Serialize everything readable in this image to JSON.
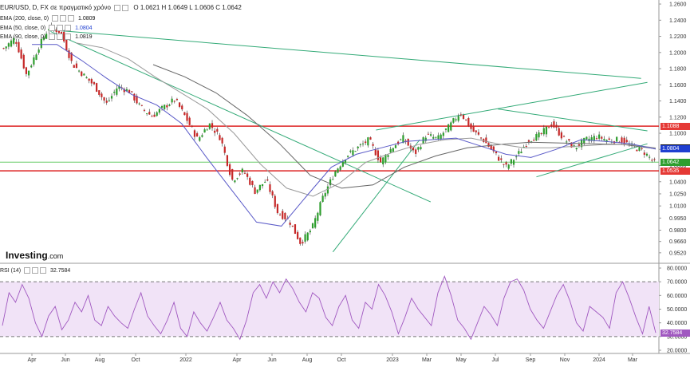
{
  "header": {
    "symbol": "EUR/USD, D, FX σε πραγματικό χρόνο",
    "ohlc": "O 1.0621  H 1.0649  L 1.0606  C 1.0642",
    "ema200": "EMA (200, close, 0)",
    "ema200_value": "1.0809",
    "ema50": "EMA (50, close, 0)",
    "ema50_value": "1.0804",
    "ema90": "EMA (90, close, 0)",
    "ema90_value": "1.0819",
    "rsi": "RSI (14)",
    "rsi_value": "32.7584"
  },
  "logo": {
    "brand": "Investing",
    "domain": ".com"
  },
  "colors": {
    "up": "#2e9e2e",
    "down": "#c62828",
    "ema200": "#666666",
    "ema50": "#5a5ac8",
    "ema90": "#9a9a9a",
    "trend": "#33aa77",
    "resistance": "#dd2222",
    "rsi": "#a058c0",
    "rsi_fill": "#f1e3f7",
    "badge_red": "#e53935",
    "badge_green": "#2e9e2e",
    "badge_blue": "#1f3fd1",
    "badge_black": "#111111",
    "badge_gray": "#777777"
  },
  "chart_data": [
    {
      "type": "candlestick",
      "title": "EUR/USD, D, FX σε πραγματικό χρόνο",
      "x_ticks": [
        "Apr",
        "Jun",
        "Aug",
        "Oct",
        "2022",
        "Apr",
        "Jun",
        "Aug",
        "Oct",
        "2023",
        "Mar",
        "May",
        "Jul",
        "Sep",
        "Nov",
        "2024",
        "Mar"
      ],
      "y_ticks": [
        "1.2600",
        "1.2400",
        "1.2200",
        "1.2000",
        "1.1800",
        "1.1600",
        "1.1400",
        "1.1200",
        "1.1000",
        "1.0800",
        "1.0600",
        "1.0400",
        "1.0250",
        "1.0100",
        "0.9950",
        "0.9800",
        "0.9660",
        "0.9520"
      ],
      "ylim": [
        0.94,
        1.265
      ],
      "price_path": [
        1.205,
        1.218,
        1.172,
        1.205,
        1.232,
        1.225,
        1.186,
        1.172,
        1.158,
        1.136,
        1.158,
        1.152,
        1.132,
        1.121,
        1.132,
        1.142,
        1.118,
        1.092,
        1.112,
        1.094,
        1.042,
        1.054,
        1.028,
        1.042,
        1.002,
        0.992,
        0.964,
        0.982,
        1.022,
        1.052,
        1.072,
        1.082,
        1.092,
        1.064,
        1.082,
        1.094,
        1.074,
        1.098,
        1.093,
        1.108,
        1.126,
        1.104,
        1.092,
        1.075,
        1.058,
        1.073,
        1.092,
        1.098,
        1.112,
        1.094,
        1.082,
        1.092,
        1.096,
        1.091,
        1.092,
        1.084,
        1.078,
        1.064
      ],
      "ema200_path": [
        1.185,
        1.17,
        1.15,
        1.122,
        1.088,
        1.048,
        1.032,
        1.036,
        1.058,
        1.072,
        1.082,
        1.086,
        1.089,
        1.088,
        1.087,
        1.086,
        1.0809
      ],
      "ema90_path": [
        1.212,
        1.206,
        1.192,
        1.17,
        1.15,
        1.13,
        1.1,
        1.062,
        1.032,
        1.022,
        1.038,
        1.064,
        1.076,
        1.086,
        1.092,
        1.094,
        1.087,
        1.082,
        1.082,
        1.084,
        1.086,
        1.086,
        1.0819
      ],
      "ema50_path": [
        1.21,
        1.21,
        1.19,
        1.168,
        1.148,
        1.135,
        1.112,
        1.07,
        1.03,
        0.99,
        0.985,
        1.022,
        1.058,
        1.074,
        1.082,
        1.09,
        1.092,
        1.094,
        1.084,
        1.074,
        1.07,
        1.08,
        1.092,
        1.09,
        1.087,
        1.0804
      ],
      "trendlines": [
        {
          "from": [
            "2021-05-28",
            1.228
          ],
          "to": [
            "2024-03-20",
            1.168
          ]
        },
        {
          "from": [
            "2021-05-28",
            1.226
          ],
          "to": [
            "2023-03-20",
            1.015
          ]
        },
        {
          "from": [
            "2022-10-01",
            0.953
          ],
          "to": [
            "2023-03-01",
            1.092
          ]
        },
        {
          "from": [
            "2022-12-15",
            1.104
          ],
          "to": [
            "2024-03-31",
            1.163
          ]
        },
        {
          "from": [
            "2023-07-15",
            1.13
          ],
          "to": [
            "2024-03-31",
            1.103
          ]
        },
        {
          "from": [
            "2023-09-20",
            1.046
          ],
          "to": [
            "2024-03-31",
            1.087
          ]
        }
      ],
      "horizontal_lines": [
        {
          "value": 1.1088,
          "color": "#dd2222"
        },
        {
          "value": 1.0535,
          "color": "#dd2222"
        },
        {
          "value": 1.0642,
          "color": "#66cc66"
        }
      ],
      "badges": [
        {
          "label": "1.1088",
          "value": 1.1088,
          "color": "#e53935"
        },
        {
          "label": "1.0819",
          "value": 1.0819,
          "color": "#111111"
        },
        {
          "label": "1.0809",
          "value": 1.0809,
          "color": "#111111"
        },
        {
          "label": "1.0804",
          "value": 1.0804,
          "color": "#1f3fd1"
        },
        {
          "label": "1.0642",
          "value": 1.0642,
          "color": "#2e9e2e"
        },
        {
          "label": "1.0535",
          "value": 1.0535,
          "color": "#e53935"
        }
      ]
    },
    {
      "type": "line",
      "title": "RSI (14)",
      "y_ticks": [
        "80.0000",
        "70.0000",
        "60.0000",
        "50.0000",
        "40.0000",
        "30.0000",
        "20.0000"
      ],
      "ylim": [
        20,
        80
      ],
      "overbought": 70,
      "oversold": 30,
      "last_value": "32.7584",
      "rsi_path": [
        38,
        62,
        55,
        68,
        58,
        40,
        30,
        45,
        52,
        35,
        42,
        55,
        48,
        60,
        42,
        38,
        52,
        45,
        40,
        36,
        50,
        62,
        45,
        38,
        32,
        42,
        55,
        36,
        30,
        48,
        40,
        34,
        44,
        55,
        42,
        36,
        28,
        42,
        62,
        68,
        58,
        70,
        62,
        72,
        65,
        55,
        48,
        62,
        58,
        44,
        38,
        52,
        60,
        42,
        36,
        55,
        50,
        68,
        60,
        48,
        32,
        44,
        58,
        50,
        44,
        38,
        62,
        74,
        60,
        42,
        36,
        28,
        40,
        52,
        46,
        38,
        58,
        70,
        72,
        64,
        50,
        42,
        36,
        48,
        60,
        68,
        56,
        40,
        34,
        52,
        48,
        44,
        36,
        62,
        70,
        58,
        44,
        32,
        52,
        32.7584
      ]
    }
  ]
}
